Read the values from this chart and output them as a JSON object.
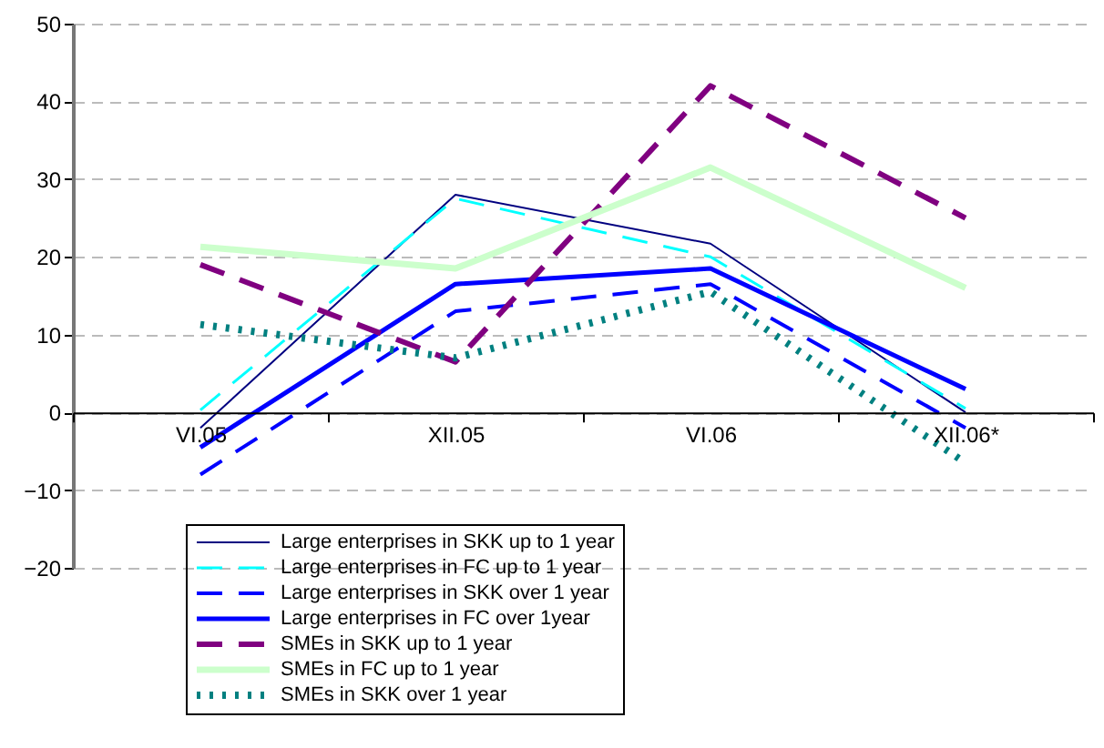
{
  "chart_data": {
    "type": "line",
    "categories": [
      "VI.05",
      "XII.05",
      "VI.06",
      "XII.06*"
    ],
    "ylim": [
      -20,
      50
    ],
    "yticks": [
      -20,
      -10,
      0,
      10,
      20,
      30,
      40,
      50
    ],
    "grid": "y",
    "legend": "bottom",
    "series": [
      {
        "name": "Large enterprises in SKK up to 1 year",
        "color": "#000080",
        "line_style": "solid",
        "values": [
          -2,
          28,
          21.7,
          0
        ]
      },
      {
        "name": "Large enterprises in FC up to 1 year",
        "color": "#00ffff",
        "line_style": "dashed",
        "values": [
          0.3,
          27.5,
          20,
          0.5
        ]
      },
      {
        "name": "Large enterprises in SKK over 1 year",
        "color": "#0000ff",
        "line_style": "dashed",
        "values": [
          -8,
          13,
          16.5,
          -2
        ]
      },
      {
        "name": "Large enterprises in FC over 1year",
        "color": "#0000ff",
        "line_style": "solid",
        "values": [
          -4.5,
          16.5,
          18.5,
          3
        ]
      },
      {
        "name": "SMEs in SKK up to 1 year",
        "color": "#800080",
        "line_style": "dashed",
        "values": [
          19,
          6.5,
          42,
          25
        ]
      },
      {
        "name": "SMEs in FC up to 1 year",
        "color": "#ccffcc",
        "line_style": "solid",
        "values": [
          21.3,
          18.5,
          31.5,
          16
        ]
      },
      {
        "name": "SMEs in SKK over 1 year",
        "color": "#008080",
        "line_style": "dotted",
        "values": [
          11.3,
          7,
          15.5,
          -6.5
        ]
      }
    ]
  }
}
